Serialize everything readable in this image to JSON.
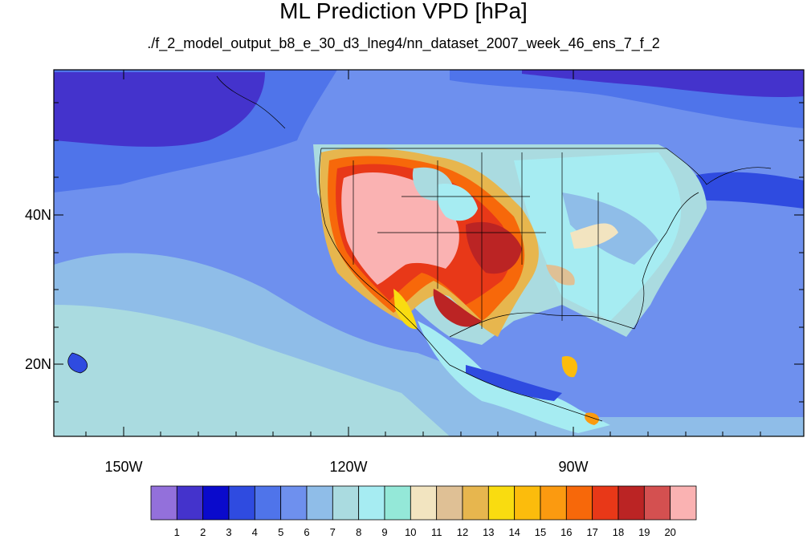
{
  "title": "ML Prediction VPD [hPa]",
  "subtitle": "./f_2_model_output_b8_e_30_d3_lneg4/nn_dataset_2007_week_46_ens_7_f_2",
  "map": {
    "lon_range": [
      -160,
      -60
    ],
    "lat_range": [
      10,
      59
    ],
    "lat_ticks": [
      {
        "value": 40,
        "label": "40N"
      },
      {
        "value": 20,
        "label": "20N"
      }
    ],
    "lon_ticks": [
      {
        "value": -150,
        "label": "150W"
      },
      {
        "value": -120,
        "label": "120W"
      },
      {
        "value": -90,
        "label": "90W"
      }
    ]
  },
  "colorbar": {
    "colors": [
      "#9370db",
      "#4433cc",
      "#0a0acc",
      "#2f4be0",
      "#4f74ea",
      "#6e90ee",
      "#8fbde8",
      "#aadbe0",
      "#a6ecf2",
      "#94e8d8",
      "#f2e4c0",
      "#dfc095",
      "#e7b64e",
      "#f9dc10",
      "#fcbc0c",
      "#fb9a10",
      "#f7680a",
      "#e83818",
      "#bb2424",
      "#d45050",
      "#fab2b2"
    ],
    "labels": [
      "1",
      "2",
      "3",
      "4",
      "5",
      "6",
      "7",
      "8",
      "9",
      "10",
      "11",
      "12",
      "13",
      "14",
      "15",
      "16",
      "17",
      "18",
      "19",
      "20"
    ]
  }
}
